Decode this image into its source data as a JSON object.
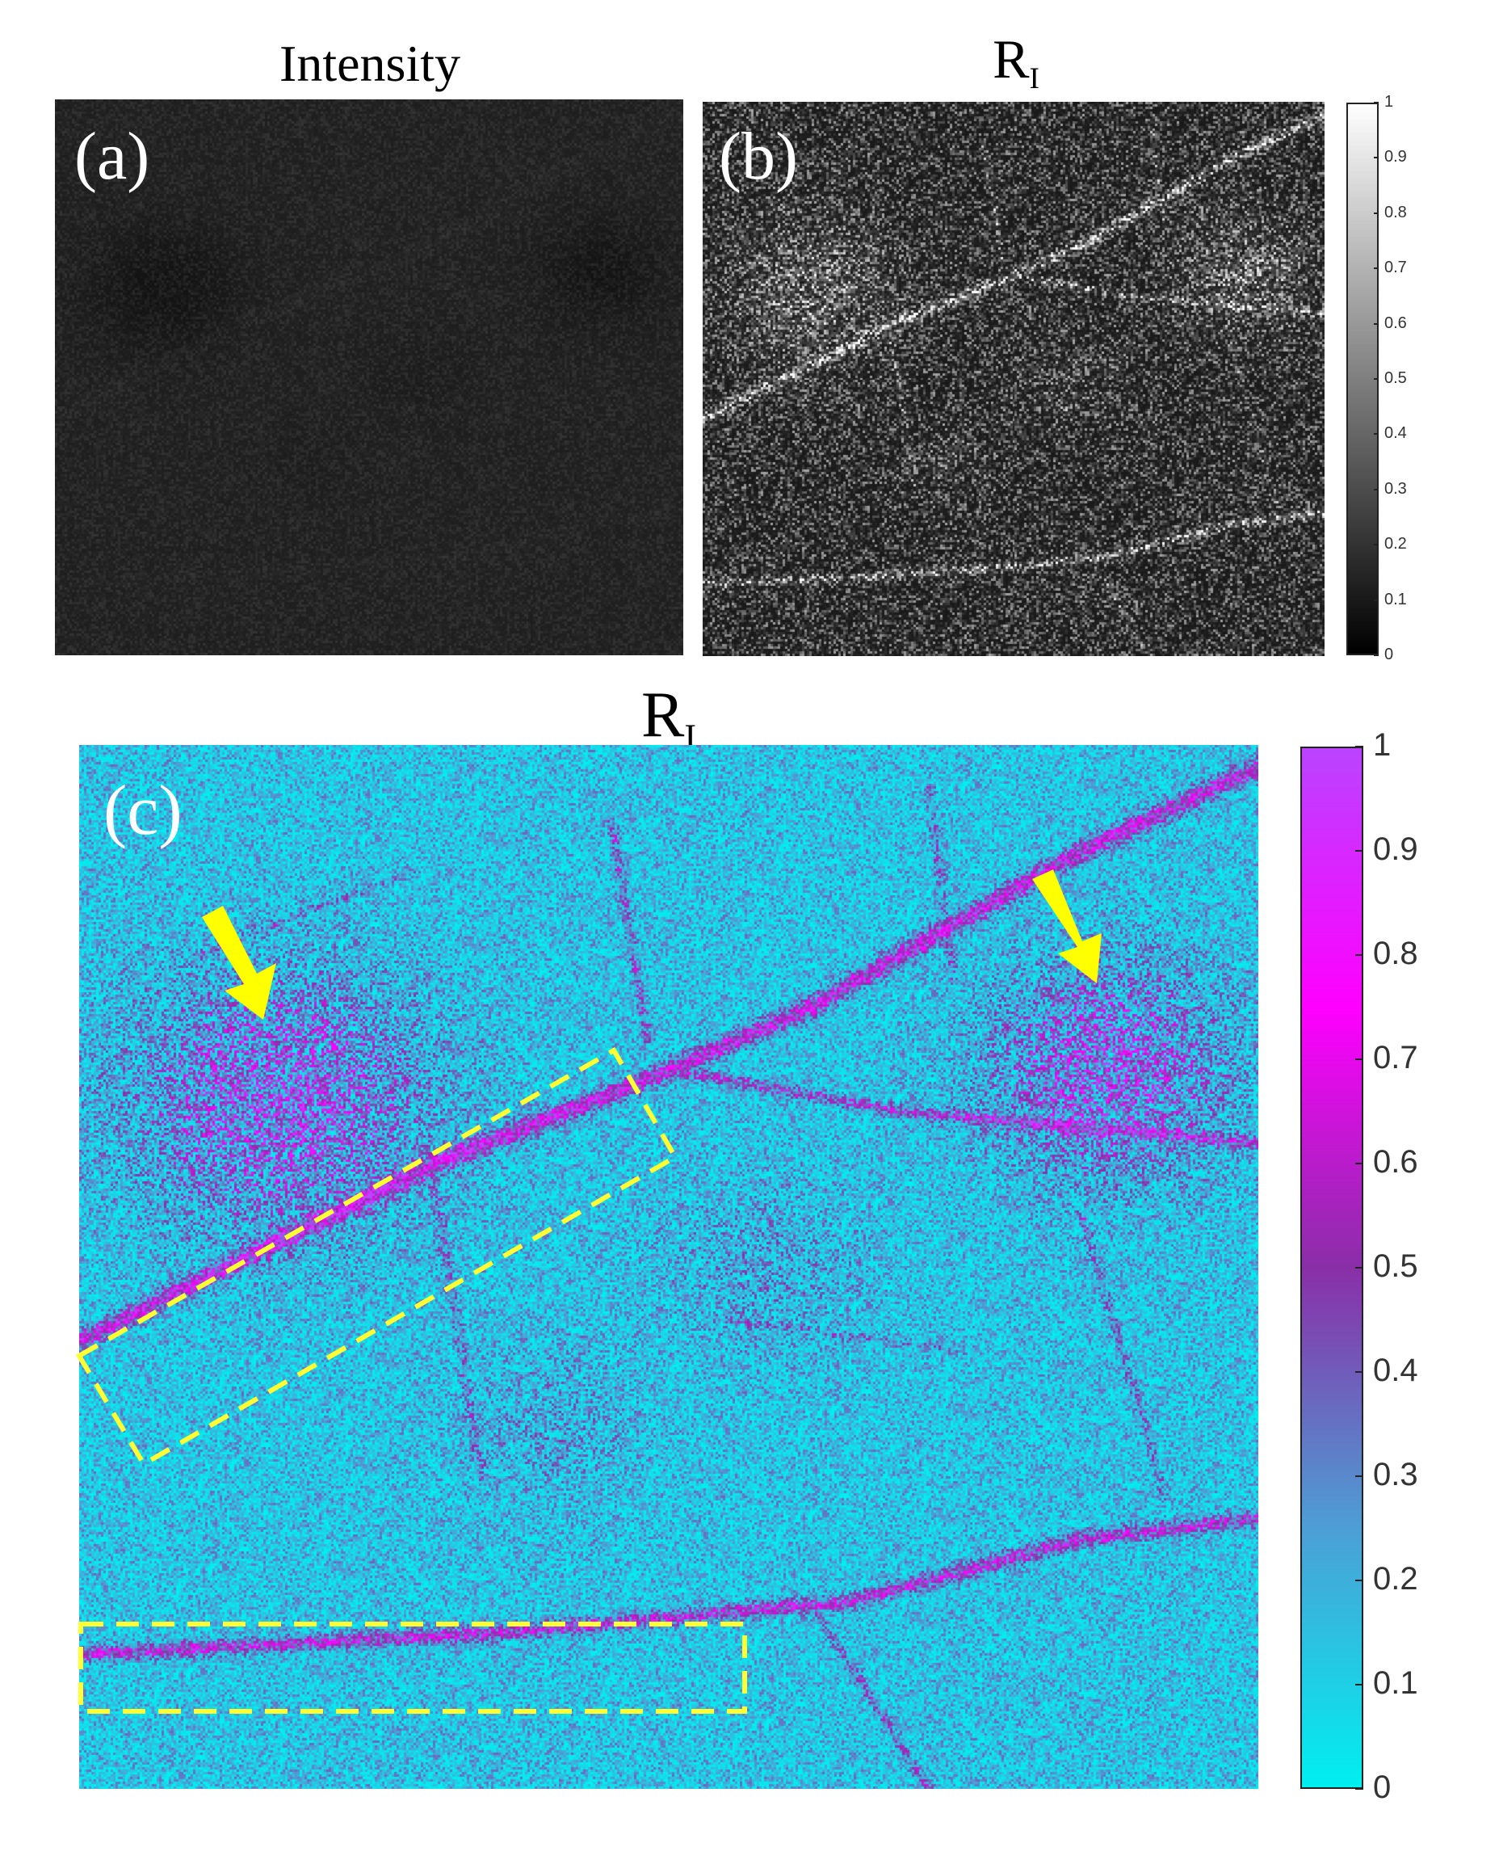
{
  "panels": {
    "a": {
      "label": "(a)",
      "title": "Intensity"
    },
    "b": {
      "label": "(b)",
      "title_main": "R",
      "title_sub": "I"
    },
    "c": {
      "label": "(c)",
      "title_main": "R",
      "title_sub": "I"
    }
  },
  "colorbar_gray": {
    "ticks": [
      "0",
      "0.1",
      "0.2",
      "0.3",
      "0.4",
      "0.5",
      "0.6",
      "0.7",
      "0.8",
      "0.9",
      "1"
    ],
    "colors": [
      "#000000",
      "#ffffff"
    ]
  },
  "colorbar_cool": {
    "ticks": [
      "0",
      "0.1",
      "0.2",
      "0.3",
      "0.4",
      "0.5",
      "0.6",
      "0.7",
      "0.8",
      "0.9",
      "1"
    ],
    "colors": [
      "#00f0f0",
      "#4d9fd6",
      "#8a2fa8",
      "#ff00ff",
      "#bb44ff"
    ]
  },
  "annotations": {
    "arrow_color": "#ffff00",
    "box_color": "#ffff33"
  }
}
